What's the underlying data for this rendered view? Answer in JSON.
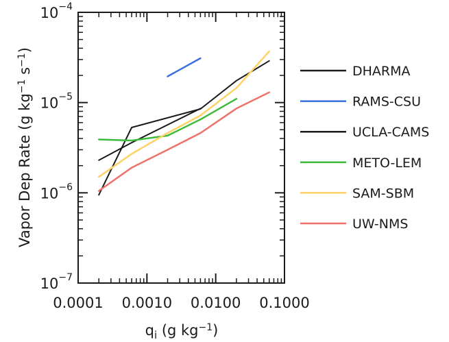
{
  "chart_data": {
    "type": "line",
    "xlabel": "q",
    "xlabel_subscript": "i",
    "xlabel_units": " (g kg",
    "xlabel_units_sup": "−1",
    "xlabel_units_end": ")",
    "ylabel": "Vapor Dep Rate (g kg",
    "ylabel_sup1": "−1",
    "ylabel_mid": " s",
    "ylabel_sup2": "−1",
    "ylabel_end": ")",
    "x_scale": "log",
    "y_scale": "log",
    "xlim": [
      0.0001,
      0.1
    ],
    "ylim": [
      1e-07,
      0.0001
    ],
    "x_ticks": [
      {
        "value": 0.0001,
        "label": "0.0001"
      },
      {
        "value": 0.001,
        "label": "0.0010"
      },
      {
        "value": 0.01,
        "label": "0.0100"
      },
      {
        "value": 0.1,
        "label": "0.1000"
      }
    ],
    "y_ticks": [
      {
        "value": 1e-07,
        "mantissa": "10",
        "exponent": "−7"
      },
      {
        "value": 1e-06,
        "mantissa": "10",
        "exponent": "−6"
      },
      {
        "value": 1e-05,
        "mantissa": "10",
        "exponent": "−5"
      },
      {
        "value": 0.0001,
        "mantissa": "10",
        "exponent": "−4"
      }
    ],
    "legend_position": "right",
    "series": [
      {
        "name": "DHARMA",
        "color": "#1a1a1a",
        "x": [
          0.0002,
          0.0006,
          0.006,
          0.02,
          0.06
        ],
        "y": [
          9.5e-07,
          5.3e-06,
          8.5e-06,
          1.75e-05,
          2.9e-05
        ]
      },
      {
        "name": "RAMS-CSU",
        "color": "#3a6fe0",
        "x": [
          0.002,
          0.006
        ],
        "y": [
          1.95e-05,
          3.1e-05
        ]
      },
      {
        "name": "UCLA-CAMS",
        "color": "#1a1a1a",
        "x": [
          0.0002,
          0.0006,
          0.006
        ],
        "y": [
          2.3e-06,
          3.6e-06,
          8.6e-06
        ]
      },
      {
        "name": "METO-LEM",
        "color": "#3cbb3c",
        "x": [
          0.0002,
          0.0006,
          0.002,
          0.006,
          0.02
        ],
        "y": [
          3.9e-06,
          3.8e-06,
          4.3e-06,
          6.5e-06,
          1.1e-05
        ]
      },
      {
        "name": "SAM-SBM",
        "color": "#ffd166",
        "x": [
          0.0002,
          0.0006,
          0.002,
          0.006,
          0.02,
          0.06
        ],
        "y": [
          1.5e-06,
          2.7e-06,
          4.6e-06,
          7.2e-06,
          1.45e-05,
          3.7e-05
        ]
      },
      {
        "name": "UW-NMS",
        "color": "#f0706a",
        "x": [
          0.0002,
          0.0006,
          0.002,
          0.006,
          0.02,
          0.06
        ],
        "y": [
          1.05e-06,
          1.9e-06,
          3e-06,
          4.6e-06,
          8.6e-06,
          1.3e-05
        ]
      }
    ]
  }
}
